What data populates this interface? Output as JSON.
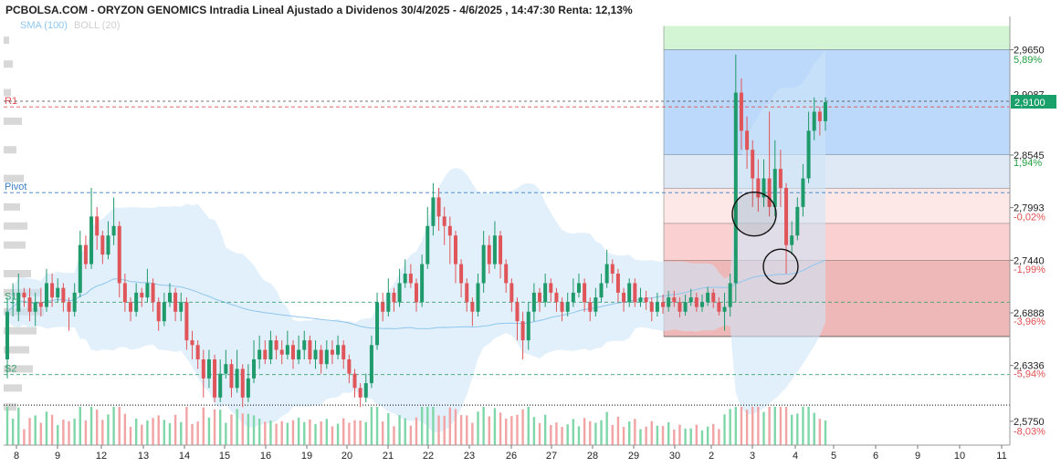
{
  "header": {
    "title": "PCBOLSA.COM - ORYZON GENOMICS Intradia Lineal Ajustado a Dividenos 30/4/2025 - 4/6/2025 , 14:47:30 Renta: 12,13%",
    "legend_sma": "SMA (100)",
    "legend_boll": "BOLL (20)"
  },
  "chart_data": {
    "type": "candlestick",
    "x_tick_labels": [
      "8",
      "9",
      "12",
      "13",
      "14",
      "15",
      "16",
      "19",
      "20",
      "21",
      "22",
      "23",
      "26",
      "27",
      "28",
      "29",
      "30",
      "2",
      "3",
      "4",
      "5",
      "6",
      "9",
      "10",
      "11"
    ],
    "y_tick_labels": [
      "2,9650",
      "2,8545",
      "2,7993",
      "2,7440",
      "2,6888",
      "2,6336",
      "2,5750"
    ],
    "y_ticks": [
      2.965,
      2.8545,
      2.7993,
      2.744,
      2.6888,
      2.6336,
      2.575
    ],
    "ylim": [
      2.55,
      3.0
    ],
    "pct_labels": [
      "5,89%",
      "1,94%",
      "-0,02%",
      "-1,99%",
      "-3,96%",
      "-5,94%",
      "-8,03%"
    ],
    "pct_values": [
      2.955,
      2.847,
      2.79,
      2.735,
      2.68,
      2.625,
      2.565
    ],
    "current_price_label": "2,9100",
    "current_price": 2.91,
    "hidden_price_label": "2,9087",
    "pivot_levels": [
      {
        "name": "R1",
        "value": 2.905,
        "color": "#e05050"
      },
      {
        "name": "Pivot",
        "value": 2.815,
        "color": "#3a7fc8"
      },
      {
        "name": "S1",
        "value": 2.7,
        "color": "#3aa070"
      },
      {
        "name": "S2",
        "value": 2.624,
        "color": "#3aa070"
      }
    ],
    "dotted_level": 2.592,
    "fib_bands": [
      {
        "from": 2.965,
        "to": 2.99,
        "color": "#d3f5d3"
      },
      {
        "from": 2.8545,
        "to": 2.965,
        "color": "#bcd8fb"
      },
      {
        "from": 2.8195,
        "to": 2.8545,
        "color": "#dfe9f6"
      },
      {
        "from": 2.7825,
        "to": 2.8195,
        "color": "#fde7e7"
      },
      {
        "from": 2.744,
        "to": 2.7825,
        "color": "#fbd0d0"
      },
      {
        "from": 2.664,
        "to": 2.744,
        "color": "#eeb8b8"
      }
    ],
    "candles": [
      [
        2.64,
        2.69,
        2.705,
        2.62
      ],
      [
        2.7,
        2.7,
        2.72,
        2.685
      ],
      [
        2.69,
        2.71,
        2.73,
        2.68
      ],
      [
        2.71,
        2.705,
        2.715,
        2.695
      ],
      [
        2.705,
        2.69,
        2.715,
        2.68
      ],
      [
        2.69,
        2.7,
        2.71,
        2.675
      ],
      [
        2.7,
        2.695,
        2.715,
        2.685
      ],
      [
        2.695,
        2.72,
        2.735,
        2.69
      ],
      [
        2.72,
        2.705,
        2.73,
        2.695
      ],
      [
        2.705,
        2.715,
        2.725,
        2.7
      ],
      [
        2.715,
        2.7,
        2.72,
        2.69
      ],
      [
        2.7,
        2.69,
        2.705,
        2.67
      ],
      [
        2.69,
        2.71,
        2.72,
        2.685
      ],
      [
        2.71,
        2.76,
        2.775,
        2.705
      ],
      [
        2.76,
        2.74,
        2.77,
        2.735
      ],
      [
        2.74,
        2.79,
        2.82,
        2.735
      ],
      [
        2.79,
        2.77,
        2.8,
        2.755
      ],
      [
        2.77,
        2.75,
        2.775,
        2.74
      ],
      [
        2.75,
        2.77,
        2.785,
        2.745
      ],
      [
        2.77,
        2.78,
        2.81,
        2.76
      ],
      [
        2.78,
        2.72,
        2.785,
        2.705
      ],
      [
        2.72,
        2.7,
        2.73,
        2.69
      ],
      [
        2.7,
        2.69,
        2.705,
        2.68
      ],
      [
        2.69,
        2.71,
        2.72,
        2.685
      ],
      [
        2.71,
        2.705,
        2.715,
        2.695
      ],
      [
        2.705,
        2.72,
        2.735,
        2.7
      ],
      [
        2.72,
        2.7,
        2.725,
        2.69
      ],
      [
        2.7,
        2.68,
        2.705,
        2.67
      ],
      [
        2.68,
        2.7,
        2.71,
        2.675
      ],
      [
        2.7,
        2.71,
        2.72,
        2.695
      ],
      [
        2.71,
        2.69,
        2.715,
        2.68
      ],
      [
        2.69,
        2.7,
        2.71,
        2.68
      ],
      [
        2.7,
        2.66,
        2.705,
        2.65
      ],
      [
        2.66,
        2.655,
        2.67,
        2.64
      ],
      [
        2.655,
        2.64,
        2.66,
        2.63
      ],
      [
        2.64,
        2.62,
        2.65,
        2.6
      ],
      [
        2.62,
        2.64,
        2.65,
        2.61
      ],
      [
        2.64,
        2.6,
        2.645,
        2.595
      ],
      [
        2.6,
        2.625,
        2.64,
        2.595
      ],
      [
        2.625,
        2.635,
        2.65,
        2.62
      ],
      [
        2.635,
        2.61,
        2.64,
        2.6
      ],
      [
        2.61,
        2.63,
        2.65,
        2.605
      ],
      [
        2.63,
        2.6,
        2.635,
        2.59
      ],
      [
        2.6,
        2.62,
        2.635,
        2.595
      ],
      [
        2.62,
        2.64,
        2.66,
        2.615
      ],
      [
        2.64,
        2.65,
        2.665,
        2.63
      ],
      [
        2.65,
        2.64,
        2.66,
        2.635
      ],
      [
        2.64,
        2.66,
        2.67,
        2.635
      ],
      [
        2.66,
        2.65,
        2.665,
        2.64
      ],
      [
        2.65,
        2.645,
        2.66,
        2.635
      ],
      [
        2.645,
        2.655,
        2.67,
        2.64
      ],
      [
        2.655,
        2.64,
        2.66,
        2.63
      ],
      [
        2.64,
        2.65,
        2.665,
        2.635
      ],
      [
        2.65,
        2.66,
        2.67,
        2.64
      ],
      [
        2.66,
        2.64,
        2.665,
        2.635
      ],
      [
        2.64,
        2.65,
        2.66,
        2.63
      ],
      [
        2.65,
        2.635,
        2.655,
        2.625
      ],
      [
        2.635,
        2.65,
        2.66,
        2.63
      ],
      [
        2.65,
        2.645,
        2.66,
        2.635
      ],
      [
        2.645,
        2.655,
        2.665,
        2.64
      ],
      [
        2.655,
        2.64,
        2.66,
        2.63
      ],
      [
        2.64,
        2.625,
        2.645,
        2.615
      ],
      [
        2.625,
        2.61,
        2.63,
        2.6
      ],
      [
        2.61,
        2.6,
        2.615,
        2.59
      ],
      [
        2.6,
        2.615,
        2.625,
        2.595
      ],
      [
        2.615,
        2.655,
        2.665,
        2.61
      ],
      [
        2.655,
        2.7,
        2.71,
        2.65
      ],
      [
        2.7,
        2.69,
        2.71,
        2.68
      ],
      [
        2.69,
        2.71,
        2.725,
        2.685
      ],
      [
        2.71,
        2.7,
        2.715,
        2.69
      ],
      [
        2.7,
        2.72,
        2.735,
        2.695
      ],
      [
        2.72,
        2.73,
        2.745,
        2.715
      ],
      [
        2.73,
        2.72,
        2.74,
        2.715
      ],
      [
        2.72,
        2.7,
        2.725,
        2.69
      ],
      [
        2.7,
        2.74,
        2.75,
        2.695
      ],
      [
        2.74,
        2.78,
        2.8,
        2.735
      ],
      [
        2.78,
        2.81,
        2.825,
        2.77
      ],
      [
        2.81,
        2.79,
        2.82,
        2.775
      ],
      [
        2.79,
        2.78,
        2.8,
        2.76
      ],
      [
        2.78,
        2.77,
        2.79,
        2.74
      ],
      [
        2.77,
        2.74,
        2.775,
        2.72
      ],
      [
        2.74,
        2.72,
        2.745,
        2.705
      ],
      [
        2.72,
        2.7,
        2.725,
        2.69
      ],
      [
        2.7,
        2.69,
        2.705,
        2.675
      ],
      [
        2.69,
        2.72,
        2.73,
        2.685
      ],
      [
        2.72,
        2.76,
        2.775,
        2.71
      ],
      [
        2.76,
        2.74,
        2.77,
        2.73
      ],
      [
        2.74,
        2.77,
        2.785,
        2.735
      ],
      [
        2.77,
        2.74,
        2.775,
        2.725
      ],
      [
        2.74,
        2.72,
        2.745,
        2.71
      ],
      [
        2.72,
        2.7,
        2.725,
        2.69
      ],
      [
        2.7,
        2.68,
        2.705,
        2.66
      ],
      [
        2.68,
        2.66,
        2.69,
        2.64
      ],
      [
        2.66,
        2.69,
        2.7,
        2.65
      ],
      [
        2.69,
        2.71,
        2.72,
        2.68
      ],
      [
        2.71,
        2.7,
        2.715,
        2.69
      ],
      [
        2.7,
        2.72,
        2.73,
        2.695
      ],
      [
        2.72,
        2.71,
        2.725,
        2.7
      ],
      [
        2.71,
        2.7,
        2.715,
        2.69
      ],
      [
        2.7,
        2.69,
        2.705,
        2.68
      ],
      [
        2.69,
        2.7,
        2.71,
        2.685
      ],
      [
        2.7,
        2.71,
        2.725,
        2.695
      ],
      [
        2.71,
        2.72,
        2.73,
        2.705
      ],
      [
        2.72,
        2.7,
        2.725,
        2.69
      ],
      [
        2.7,
        2.69,
        2.705,
        2.68
      ],
      [
        2.69,
        2.705,
        2.715,
        2.685
      ],
      [
        2.705,
        2.72,
        2.73,
        2.7
      ],
      [
        2.72,
        2.74,
        2.755,
        2.715
      ],
      [
        2.74,
        2.73,
        2.745,
        2.72
      ],
      [
        2.73,
        2.71,
        2.735,
        2.7
      ],
      [
        2.71,
        2.7,
        2.715,
        2.69
      ],
      [
        2.7,
        2.72,
        2.725,
        2.695
      ],
      [
        2.72,
        2.7,
        2.725,
        2.695
      ],
      [
        2.7,
        2.705,
        2.715,
        2.695
      ],
      [
        2.705,
        2.7,
        2.712,
        2.692
      ],
      [
        2.7,
        2.69,
        2.705,
        2.68
      ],
      [
        2.69,
        2.7,
        2.71,
        2.685
      ],
      [
        2.7,
        2.695,
        2.708,
        2.688
      ],
      [
        2.695,
        2.705,
        2.712,
        2.69
      ],
      [
        2.705,
        2.7,
        2.712,
        2.695
      ],
      [
        2.7,
        2.69,
        2.705,
        2.684
      ],
      [
        2.69,
        2.7,
        2.708,
        2.686
      ],
      [
        2.7,
        2.705,
        2.714,
        2.696
      ],
      [
        2.705,
        2.695,
        2.71,
        2.69
      ],
      [
        2.695,
        2.7,
        2.708,
        2.69
      ],
      [
        2.7,
        2.71,
        2.716,
        2.696
      ],
      [
        2.71,
        2.7,
        2.714,
        2.694
      ],
      [
        2.7,
        2.69,
        2.705,
        2.686
      ],
      [
        2.69,
        2.695,
        2.71,
        2.67
      ],
      [
        2.695,
        2.72,
        2.73,
        2.685
      ],
      [
        2.72,
        2.92,
        2.96,
        2.7
      ],
      [
        2.92,
        2.88,
        2.935,
        2.86
      ],
      [
        2.88,
        2.86,
        2.895,
        2.84
      ],
      [
        2.86,
        2.83,
        2.87,
        2.8
      ],
      [
        2.83,
        2.81,
        2.85,
        2.795
      ],
      [
        2.81,
        2.83,
        2.85,
        2.8
      ],
      [
        2.83,
        2.8,
        2.9,
        2.79
      ],
      [
        2.8,
        2.84,
        2.87,
        2.79
      ],
      [
        2.84,
        2.82,
        2.86,
        2.8
      ],
      [
        2.82,
        2.76,
        2.825,
        2.73
      ],
      [
        2.76,
        2.77,
        2.785,
        2.75
      ],
      [
        2.77,
        2.8,
        2.81,
        2.765
      ],
      [
        2.8,
        2.83,
        2.845,
        2.79
      ],
      [
        2.83,
        2.88,
        2.9,
        2.825
      ],
      [
        2.88,
        2.9,
        2.915,
        2.87
      ],
      [
        2.9,
        2.89,
        2.905,
        2.875
      ],
      [
        2.89,
        2.91,
        2.915,
        2.88
      ]
    ]
  }
}
